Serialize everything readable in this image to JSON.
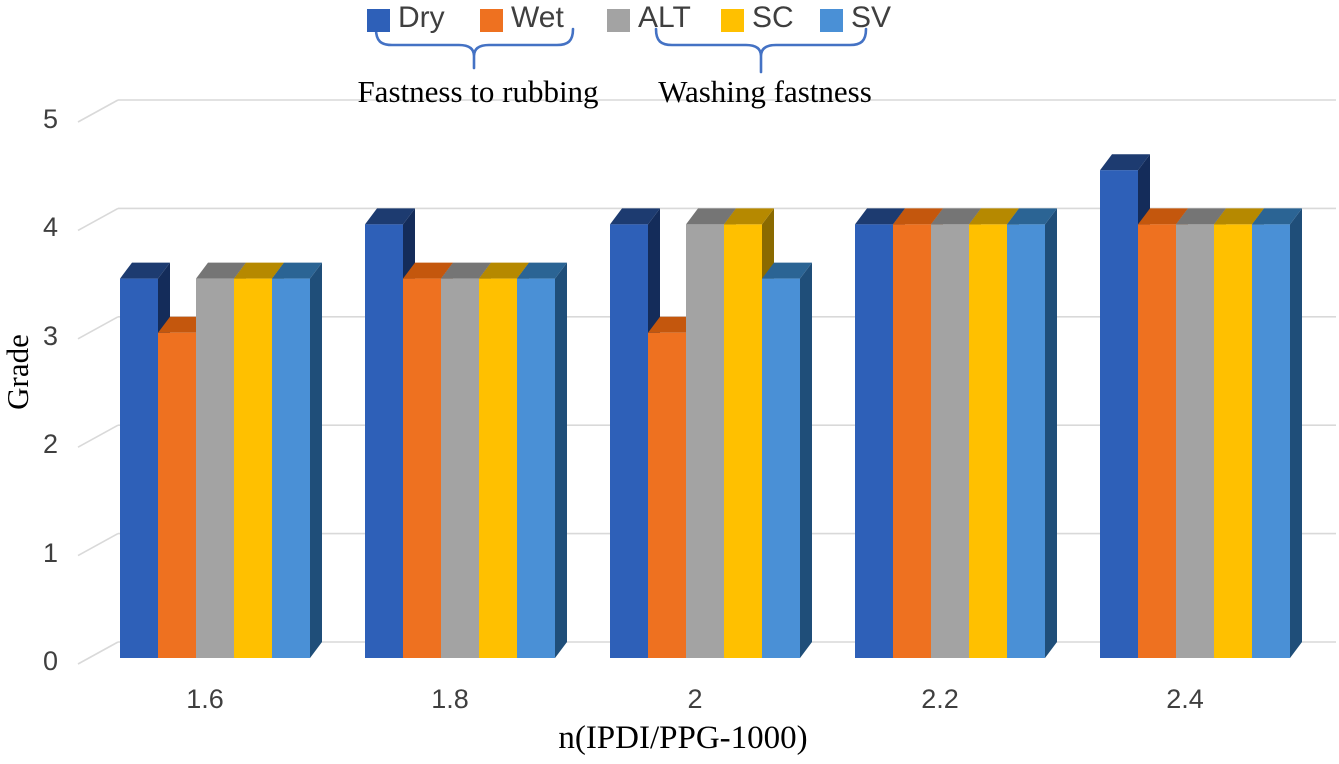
{
  "figure": {
    "background": "#FFFFFF"
  },
  "chart_data": {
    "type": "bar",
    "projection": "3d",
    "categories": [
      "1.6",
      "1.8",
      "2",
      "2.2",
      "2.4"
    ],
    "series": [
      {
        "name": "Dry",
        "group": "Fastness to rubbing",
        "values": [
          3.5,
          4,
          4,
          4,
          4.5
        ],
        "color": "#2E60B8",
        "top_color": "#1D3B70",
        "side_color": "#142C5A"
      },
      {
        "name": "Wet",
        "group": "Fastness to rubbing",
        "values": [
          3,
          3.5,
          3,
          4,
          4
        ],
        "color": "#EE7120",
        "top_color": "#C4570D",
        "side_color": "#94430B"
      },
      {
        "name": "ALT",
        "group": "Washing fastness",
        "values": [
          3.5,
          3.5,
          4,
          4,
          4
        ],
        "color": "#A3A3A3",
        "top_color": "#757575",
        "side_color": "#5E5E5E"
      },
      {
        "name": "SC",
        "group": "Washing fastness",
        "values": [
          3.5,
          3.5,
          4,
          4,
          4
        ],
        "color": "#FFC000",
        "top_color": "#B68900",
        "side_color": "#8A6A00"
      },
      {
        "name": "SV",
        "group": "Washing fastness",
        "values": [
          3.5,
          3.5,
          3.5,
          4,
          4
        ],
        "color": "#4A90D6",
        "top_color": "#2B6494",
        "side_color": "#1F4E79"
      }
    ],
    "xlabel": "n(IPDI/PPG-1000)",
    "ylabel": "Grade",
    "ylim": [
      0,
      5
    ],
    "ytick_step": 1,
    "yticks": [
      "0",
      "1",
      "2",
      "3",
      "4",
      "5"
    ],
    "grid": true,
    "legend_position": "top-center",
    "annotations": [
      {
        "text": "Fastness to rubbing",
        "applies_to": [
          "Dry",
          "Wet"
        ]
      },
      {
        "text": "Washing fastness",
        "applies_to": [
          "ALT",
          "SC",
          "SV"
        ]
      }
    ],
    "gridline_color": "#D9D9D9",
    "brace_color": "#4472C4",
    "text_color": "#3F3F3F"
  }
}
